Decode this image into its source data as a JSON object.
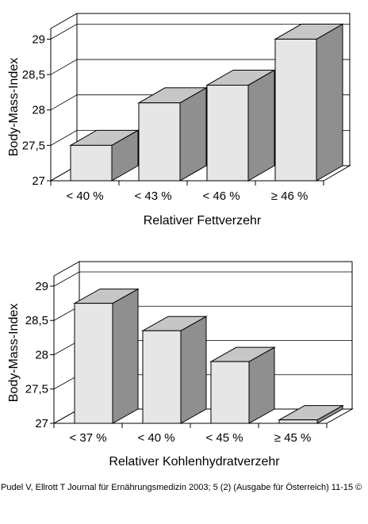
{
  "chart_data": [
    {
      "type": "bar",
      "categories": [
        "< 40 %",
        "< 43 %",
        "< 46 %",
        "≥ 46 %"
      ],
      "values": [
        27.5,
        28.1,
        28.35,
        29.0
      ],
      "xlabel": "Relativer Fettverzehr",
      "ylabel": "Body-Mass-Index",
      "yticks": [
        "29",
        "28,5",
        "28",
        "27,5",
        "27"
      ],
      "ylim": [
        27,
        29.15
      ],
      "grid": true,
      "style": "3d",
      "colors": {
        "front": "#e6e6e6",
        "top": "#c6c6c6",
        "side": "#8f8f8f",
        "wall": "#ffffff"
      }
    },
    {
      "type": "bar",
      "categories": [
        "< 37 %",
        "< 40 %",
        "< 45 %",
        "≥ 45 %"
      ],
      "values": [
        28.75,
        28.35,
        27.9,
        27.05
      ],
      "xlabel": "Relativer Kohlenhydratverzehr",
      "ylabel": "Body-Mass-Index",
      "yticks": [
        "29",
        "28,5",
        "28",
        "27,5",
        "27"
      ],
      "ylim": [
        27,
        29.15
      ],
      "grid": true,
      "style": "3d",
      "colors": {
        "front": "#e6e6e6",
        "top": "#c6c6c6",
        "side": "#8f8f8f",
        "wall": "#ffffff"
      }
    }
  ],
  "caption": "Pudel V, Ellrott T Journal für Ernährungsmedizin 2003; 5 (2) (Ausgabe für Österreich) 11-15 ©"
}
